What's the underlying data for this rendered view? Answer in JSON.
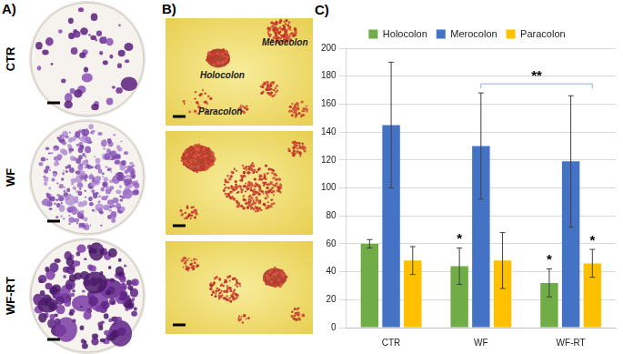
{
  "panels": {
    "labels": [
      "A)",
      "B)",
      "C)"
    ],
    "A": {
      "rows": [
        "CTR",
        "WF",
        "WF-RT"
      ]
    },
    "B": {
      "annotations": [
        "Holocolon",
        "Merocolon",
        "Paracolon"
      ]
    }
  },
  "chart_data": {
    "type": "bar",
    "categories": [
      "CTR",
      "WF",
      "WF-RT"
    ],
    "series": [
      {
        "name": "Holocolon",
        "color": "#70ad47",
        "values": [
          60,
          44,
          32
        ],
        "errors": [
          3,
          13,
          10
        ]
      },
      {
        "name": "Merocolon",
        "color": "#4472c4",
        "values": [
          145,
          130,
          119
        ],
        "errors": [
          45,
          38,
          47
        ]
      },
      {
        "name": "Paracolon",
        "color": "#ffc000",
        "values": [
          48,
          48,
          46
        ],
        "errors": [
          10,
          20,
          10
        ]
      }
    ],
    "ylim": [
      0,
      200
    ],
    "yticks": [
      0,
      20,
      40,
      60,
      80,
      100,
      120,
      140,
      160,
      180,
      200
    ],
    "grid": true,
    "legend": "top",
    "annotations": [
      {
        "text": "*",
        "category": "WF",
        "series": "Holocolon"
      },
      {
        "text": "*",
        "category": "WF-RT",
        "series": "Holocolon"
      },
      {
        "text": "*",
        "category": "WF-RT",
        "series": "Paracolon"
      },
      {
        "text": "**",
        "from": {
          "category": "WF",
          "series": "Merocolon"
        },
        "to": {
          "category": "WF-RT",
          "series": "Paracolon"
        }
      }
    ]
  }
}
